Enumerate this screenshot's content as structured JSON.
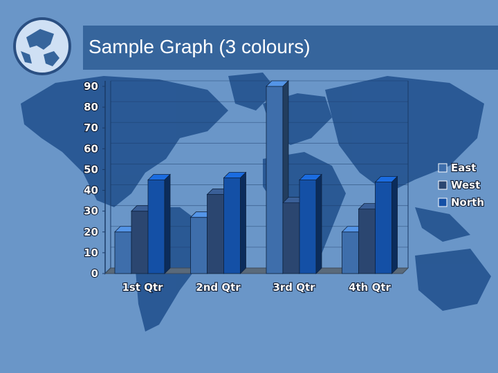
{
  "title": "Sample Graph (3 colours)",
  "colors": {
    "background": "#6a96c8",
    "land": "#1f4f8c",
    "title_bar": "#36659c",
    "east": "#3e6eab",
    "west": "#2b4670",
    "north": "#1450a6"
  },
  "chart_data": {
    "type": "bar",
    "title": "",
    "xlabel": "",
    "ylabel": "",
    "categories": [
      "1st Qtr",
      "2nd Qtr",
      "3rd Qtr",
      "4th Qtr"
    ],
    "series": [
      {
        "name": "East",
        "values": [
          20,
          27,
          90,
          20
        ]
      },
      {
        "name": "West",
        "values": [
          30,
          38,
          34,
          31
        ]
      },
      {
        "name": "North",
        "values": [
          45,
          46,
          45,
          44
        ]
      }
    ],
    "ylim": [
      0,
      90
    ],
    "yticks": [
      "0",
      "10",
      "20",
      "30",
      "40",
      "50",
      "60",
      "70",
      "80",
      "90"
    ],
    "grid": true,
    "legend": "right",
    "style": "3d"
  }
}
